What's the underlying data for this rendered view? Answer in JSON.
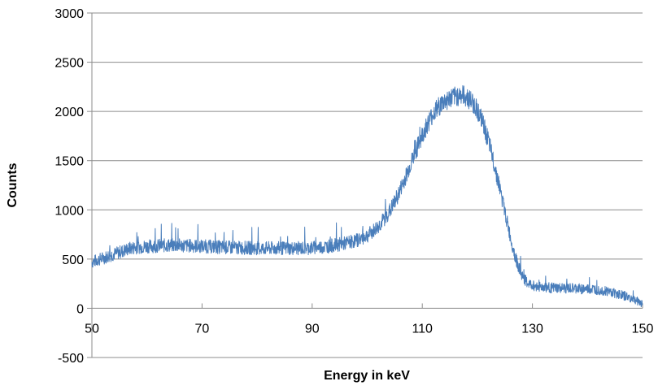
{
  "chart_data": {
    "type": "line",
    "title": "",
    "xlabel": "Energy in keV",
    "ylabel": "Counts",
    "xlim": [
      50,
      150
    ],
    "ylim": [
      -500,
      3000
    ],
    "x_ticks": [
      50,
      70,
      90,
      110,
      130,
      150
    ],
    "y_ticks": [
      -500,
      0,
      500,
      1000,
      1500,
      2000,
      2500,
      3000
    ],
    "x_tick_labels": [
      "50",
      "70",
      "90",
      "110",
      "130",
      "150"
    ],
    "y_tick_labels": [
      "-500",
      "0",
      "500",
      "1000",
      "1500",
      "2000",
      "2500",
      "3000"
    ],
    "grid": "horizontal",
    "legend": "none",
    "line_color": "#4a7ebb",
    "series": [
      {
        "x": [
          50,
          51,
          52,
          53,
          54,
          55,
          56,
          57,
          58,
          60,
          62,
          64,
          66,
          68,
          70,
          72,
          74,
          76,
          78,
          80,
          82,
          84,
          86,
          88,
          90,
          92,
          94,
          96,
          98,
          100,
          101,
          102,
          103,
          104,
          105,
          106,
          107,
          108,
          109,
          110,
          111,
          112,
          113,
          114,
          115,
          116,
          117,
          118,
          119,
          120,
          121,
          122,
          123,
          124,
          125,
          126,
          127,
          128,
          129,
          130,
          132,
          134,
          136,
          138,
          140,
          142,
          144,
          146,
          148,
          150
        ],
        "values": [
          470,
          490,
          510,
          530,
          550,
          570,
          590,
          610,
          620,
          630,
          635,
          640,
          640,
          635,
          630,
          625,
          620,
          615,
          615,
          610,
          610,
          610,
          610,
          610,
          615,
          625,
          640,
          660,
          690,
          740,
          780,
          830,
          900,
          980,
          1080,
          1200,
          1340,
          1480,
          1620,
          1760,
          1880,
          1980,
          2050,
          2100,
          2130,
          2150,
          2170,
          2150,
          2100,
          2020,
          1880,
          1700,
          1480,
          1240,
          980,
          720,
          500,
          340,
          260,
          230,
          215,
          205,
          200,
          200,
          195,
          190,
          170,
          140,
          100,
          50
        ]
      }
    ]
  }
}
